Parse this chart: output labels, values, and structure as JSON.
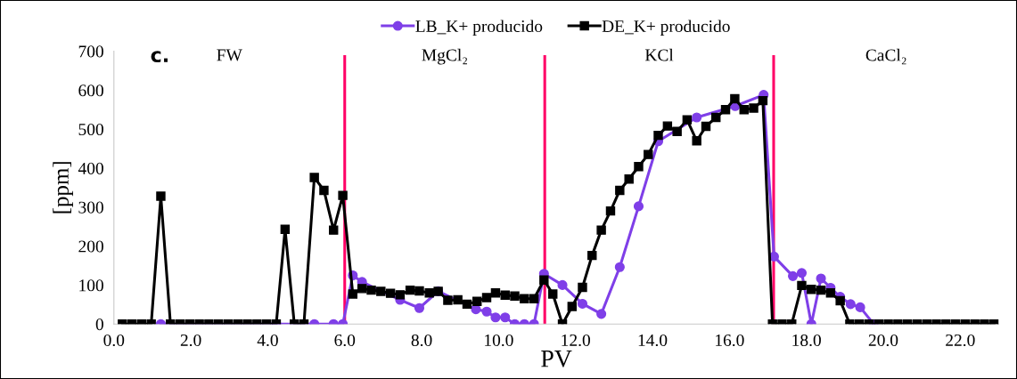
{
  "chart_data": {
    "type": "line",
    "xlabel": "PV",
    "ylabel": "[ppm]",
    "xlim": [
      0,
      23
    ],
    "xticks": [
      {
        "value": 0,
        "label": "0.0"
      },
      {
        "value": 2,
        "label": "2.0"
      },
      {
        "value": 4,
        "label": "4.0"
      },
      {
        "value": 6,
        "label": "6.0"
      },
      {
        "value": 8,
        "label": "8.0"
      },
      {
        "value": 10,
        "label": "10.0"
      },
      {
        "value": 12,
        "label": "12.0"
      },
      {
        "value": 14,
        "label": "14.0"
      },
      {
        "value": 16,
        "label": "16.0"
      },
      {
        "value": 18,
        "label": "18.0"
      },
      {
        "value": 20,
        "label": "20.0"
      },
      {
        "value": 22,
        "label": "22.0"
      }
    ],
    "ylim": [
      0,
      700
    ],
    "yticks": [
      0,
      100,
      200,
      300,
      400,
      500,
      600,
      700
    ],
    "grid": false,
    "legend": "top",
    "line_style": "solid",
    "series": [
      {
        "name": "LB_K+ producido",
        "color": "#7f3fe8",
        "marker": "circle",
        "x": [
          1.22,
          4.22,
          5.21,
          5.71,
          5.95,
          6.21,
          6.45,
          7.44,
          7.94,
          8.43,
          9.41,
          9.69,
          9.92,
          10.17,
          10.42,
          10.67,
          10.92,
          11.18,
          11.66,
          12.18,
          12.67,
          13.15,
          13.64,
          14.15,
          15.15,
          16.15,
          16.89,
          17.16,
          17.65,
          17.88,
          18.13,
          18.38,
          18.63,
          18.88,
          19.15,
          19.4,
          19.75
        ],
        "values": [
          0,
          0,
          0,
          0,
          0,
          125,
          108,
          62,
          41,
          84,
          38,
          32,
          17,
          17,
          0,
          0,
          0,
          129,
          100,
          52,
          26,
          146,
          302,
          469,
          530,
          559,
          588,
          173,
          123,
          131,
          0,
          117,
          93,
          70,
          51,
          43,
          0
        ]
      },
      {
        "name": "DE_K+ producido",
        "color": "#000000",
        "marker": "square",
        "x": [
          0.22,
          0.47,
          0.72,
          0.97,
          1.22,
          1.47,
          1.72,
          1.97,
          2.22,
          2.47,
          2.72,
          2.97,
          3.22,
          3.47,
          3.72,
          3.97,
          4.22,
          4.45,
          4.69,
          4.94,
          5.21,
          5.46,
          5.71,
          5.95,
          6.21,
          6.45,
          6.69,
          6.94,
          7.19,
          7.44,
          7.7,
          7.94,
          8.2,
          8.43,
          8.68,
          8.94,
          9.18,
          9.44,
          9.69,
          9.92,
          10.17,
          10.42,
          10.67,
          10.92,
          11.18,
          11.41,
          11.66,
          11.91,
          12.18,
          12.43,
          12.67,
          12.91,
          13.15,
          13.39,
          13.64,
          13.89,
          14.15,
          14.39,
          14.64,
          14.9,
          15.15,
          15.39,
          15.65,
          15.9,
          16.14,
          16.38,
          16.63,
          16.87,
          17.12,
          17.37,
          17.62,
          17.88,
          18.13,
          18.38,
          18.63,
          18.88,
          19.13,
          19.38,
          19.63,
          19.88,
          20.13,
          20.38,
          20.63,
          20.88,
          21.13,
          21.38,
          21.63,
          21.88,
          22.13,
          22.38,
          22.63,
          22.88
        ],
        "values": [
          0,
          0,
          0,
          0,
          328,
          0,
          0,
          0,
          0,
          0,
          0,
          0,
          0,
          0,
          0,
          0,
          0,
          243,
          0,
          0,
          376,
          343,
          241,
          330,
          77,
          91,
          87,
          84,
          79,
          75,
          87,
          85,
          80,
          84,
          61,
          62,
          51,
          58,
          68,
          80,
          74,
          72,
          65,
          65,
          113,
          77,
          0,
          45,
          94,
          176,
          241,
          290,
          343,
          372,
          404,
          435,
          484,
          508,
          494,
          524,
          470,
          507,
          530,
          550,
          578,
          550,
          554,
          573,
          0,
          0,
          0,
          99,
          89,
          87,
          80,
          60,
          0,
          0,
          0,
          0,
          0,
          0,
          0,
          0,
          0,
          0,
          0,
          0,
          0,
          0,
          0,
          0
        ]
      }
    ],
    "ref_lines": [
      {
        "axis": "x",
        "value": 6.0,
        "color": "#ff0066"
      },
      {
        "axis": "x",
        "value": 11.2,
        "color": "#ff0066"
      },
      {
        "axis": "x",
        "value": 17.15,
        "color": "#ff0066"
      }
    ],
    "annotations": [
      "c.",
      "FW",
      "MgCl₂",
      "KCl",
      "CaCl₂"
    ]
  }
}
